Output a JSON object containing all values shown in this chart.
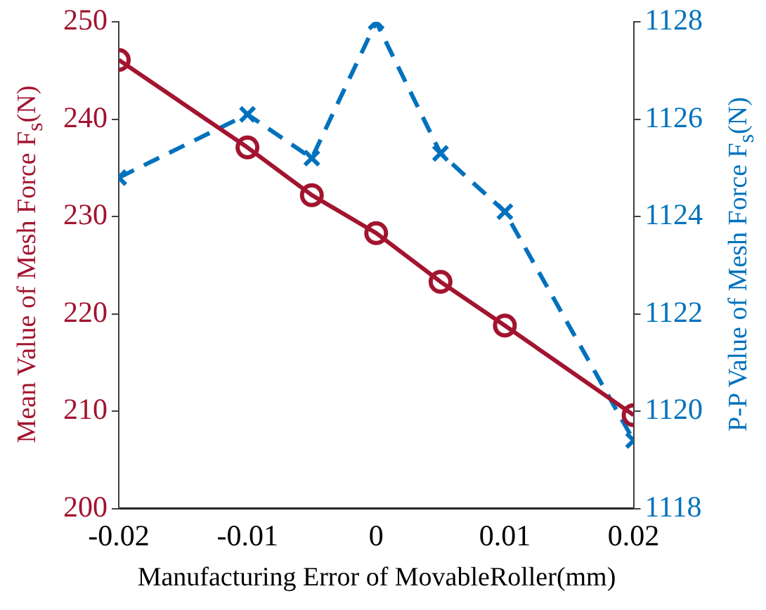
{
  "chart_data": {
    "type": "line",
    "xlabel": "Manufacturing Error of MovableRoller(mm)",
    "ylabel": "Mean Value of Mesh Force F$_{s}$(N)",
    "y2label": "P-P Value of Mesh Force F$_{s}$(N)",
    "x": [
      -0.02,
      -0.01,
      -0.005,
      0,
      0.005,
      0.01,
      0.02
    ],
    "xlim": [
      -0.02,
      0.02
    ],
    "xticks": [
      -0.02,
      -0.01,
      0,
      0.01,
      0.02
    ],
    "ylim": [
      200,
      250
    ],
    "yticks": [
      200,
      210,
      220,
      230,
      240,
      250
    ],
    "y2lim": [
      1118,
      1128
    ],
    "y2ticks": [
      1118,
      1120,
      1122,
      1124,
      1126,
      1128
    ],
    "grid": false,
    "legend": false,
    "series": [
      {
        "color": "#a2142f",
        "marker": "circle",
        "line_style": "solid",
        "values": [
          246.1,
          237.1,
          232.2,
          228.3,
          223.3,
          218.8,
          209.6
        ]
      },
      {
        "color": "#0072bd",
        "marker": "cross",
        "line_style": "dashed",
        "axis": "y2",
        "values": [
          1124.8,
          1126.1,
          1125.2,
          1128,
          1125.3,
          1124.1,
          1119.4
        ]
      }
    ]
  }
}
